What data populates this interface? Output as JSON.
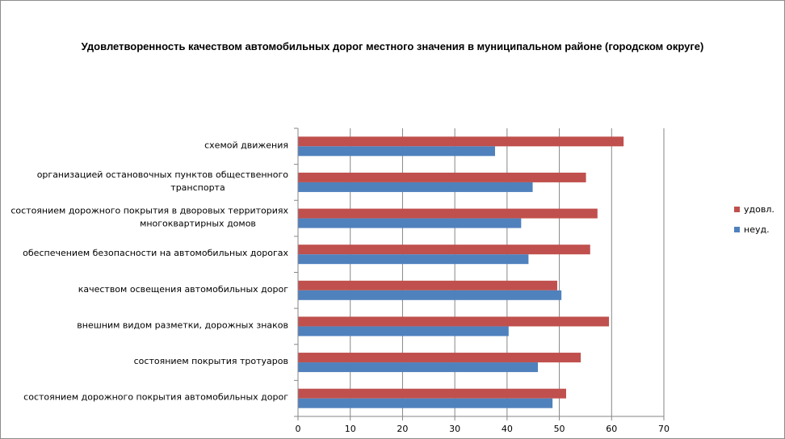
{
  "chart_data": {
    "type": "bar",
    "orientation": "horizontal",
    "title": "Удовлетворенность качеством автомобильных дорог местного значения в муниципальном районе (городском округе)",
    "categories": [
      [
        "схемой движения"
      ],
      [
        "организацией остановочных пунктов общественного",
        "транспорта"
      ],
      [
        "состоянием дорожного покрытия в дворовых территориях",
        "многоквартирных домов"
      ],
      [
        "обеспечением  безопасности на автомобильных дорогах"
      ],
      [
        "качеством освещения  автомобильных дорог"
      ],
      [
        "внешним  видом разметки, дорожных знаков"
      ],
      [
        "состоянием покрытия тротуаров"
      ],
      [
        "состоянием дорожного покрытия автомобильных дорог"
      ]
    ],
    "series": [
      {
        "name": "удовл.",
        "color": "#c0504d",
        "values": [
          62.3,
          55.1,
          57.3,
          55.9,
          49.6,
          59.5,
          54.1,
          51.3
        ]
      },
      {
        "name": "неуд.",
        "color": "#4f81bd",
        "values": [
          37.7,
          44.9,
          42.7,
          44.1,
          50.4,
          40.3,
          45.9,
          48.7
        ]
      }
    ],
    "xlim": [
      0,
      70
    ],
    "xticks": [
      "0",
      "10",
      "20",
      "30",
      "40",
      "50",
      "60",
      "70"
    ],
    "grid": true,
    "legend": "right"
  }
}
